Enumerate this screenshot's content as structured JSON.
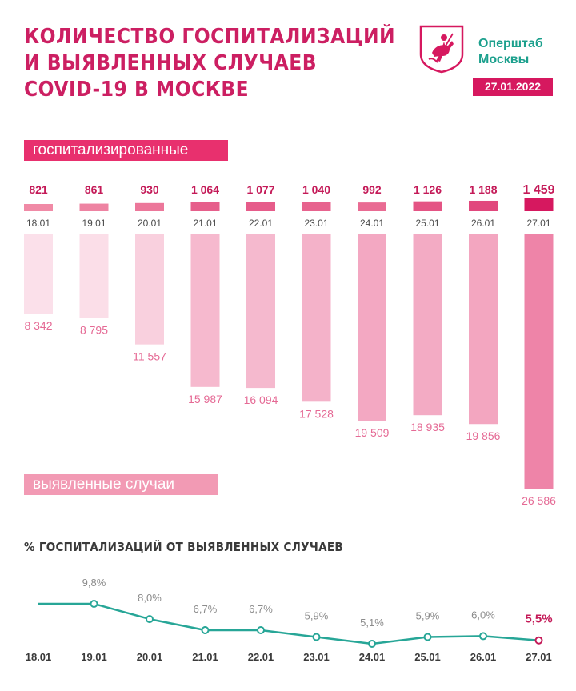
{
  "header": {
    "title_lines": [
      "КОЛИЧЕСТВО ГОСПИТАЛИЗАЦИЙ",
      "И ВЫЯВЛЕННЫХ СЛУЧАЕВ",
      "COVID-19 В МОСКВЕ"
    ],
    "brand_line1": "Оперштаб",
    "brand_line2": "Москвы",
    "date": "27.01.2022"
  },
  "labels": {
    "hospitalized": "госпитализированные",
    "cases": "выявленные случаи"
  },
  "colors": {
    "accent": "#cc1f62",
    "brand_green": "#1ca08d",
    "line": "#27a697",
    "case_label": "#e56a95"
  },
  "chart_data": [
    {
      "type": "bar",
      "categories": [
        "18.01",
        "19.01",
        "20.01",
        "21.01",
        "22.01",
        "23.01",
        "24.01",
        "25.01",
        "26.01",
        "27.01"
      ],
      "series": [
        {
          "name": "госпитализированные",
          "values": [
            821,
            861,
            930,
            1064,
            1077,
            1040,
            992,
            1126,
            1188,
            1459
          ],
          "labels": [
            "821",
            "861",
            "930",
            "1 064",
            "1 077",
            "1 040",
            "992",
            "1 126",
            "1 188",
            "1 459"
          ]
        },
        {
          "name": "выявленные случаи",
          "values": [
            8342,
            8795,
            11557,
            15987,
            16094,
            17528,
            19509,
            18935,
            19856,
            26586
          ],
          "labels": [
            "8 342",
            "8 795",
            "11 557",
            "15 987",
            "16 094",
            "17 528",
            "19 509",
            "18 935",
            "19 856",
            "26 586"
          ]
        }
      ]
    },
    {
      "type": "line",
      "title": "% ГОСПИТАЛИЗАЦИЙ ОТ ВЫЯВЛЕННЫХ СЛУЧАЕВ",
      "x": [
        "18.01",
        "19.01",
        "20.01",
        "21.01",
        "22.01",
        "23.01",
        "24.01",
        "25.01",
        "26.01",
        "27.01"
      ],
      "values": [
        9.8,
        9.8,
        8.0,
        6.7,
        6.7,
        5.9,
        5.1,
        5.9,
        6.0,
        5.5
      ],
      "labels": [
        "",
        "9,8%",
        "8,0%",
        "6,7%",
        "6,7%",
        "5,9%",
        "5,1%",
        "5,9%",
        "6,0%",
        "5,5%"
      ]
    }
  ]
}
